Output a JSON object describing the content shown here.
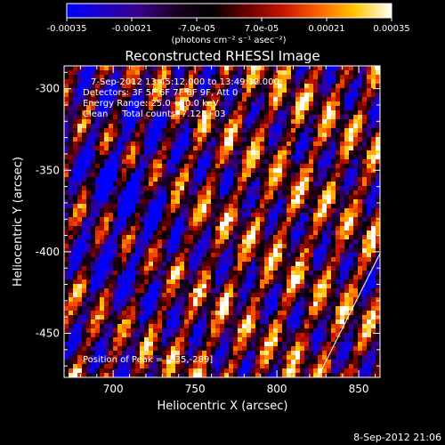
{
  "chart_data": {
    "type": "heatmap",
    "title": "Reconstructed RHESSI Image",
    "xlabel": "Heliocentric X (arcsec)",
    "ylabel": "Heliocentric Y (arcsec)",
    "xlim": [
      670,
      863
    ],
    "ylim": [
      -477,
      -286
    ],
    "x_ticks": [
      700,
      750,
      800,
      850
    ],
    "y_ticks": [
      -450,
      -400,
      -350,
      -300
    ],
    "colorbar": {
      "range": [
        -0.00035,
        0.00035
      ],
      "tick_values": [
        -0.00035,
        -0.00021,
        -7e-05,
        7e-05,
        0.00021,
        0.00035
      ],
      "tick_labels": [
        "-0.00035",
        "-0.00021",
        "-7.0e-05",
        "7.0e-05",
        "0.00021",
        "0.00035"
      ],
      "unit_label": "(photons cm⁻² s⁻¹ asec⁻²)",
      "colors": [
        "#0000ff",
        "#1a00c8",
        "#3a008c",
        "#1a0026",
        "#000000",
        "#6a0000",
        "#c81400",
        "#ff6400",
        "#ffc800",
        "#ffffff"
      ]
    },
    "annotations": {
      "time_range": "7-Sep-2012 13:45:12.000 to 13:49:12.000",
      "detectors": "Detectors: 3F 5F 6F 7F 8F 9F, Att 0",
      "energy": "Energy Range: 25.0 - 50.0 keV",
      "clean": "Clean     Total counts: 7.12E+03",
      "peak": "Position of Peak = [835,-289]"
    },
    "limb_line": [
      [
        825,
        -477
      ],
      [
        863,
        -401
      ]
    ],
    "grid": false
  },
  "footer": {
    "date": "8-Sep-2012 21:06"
  }
}
